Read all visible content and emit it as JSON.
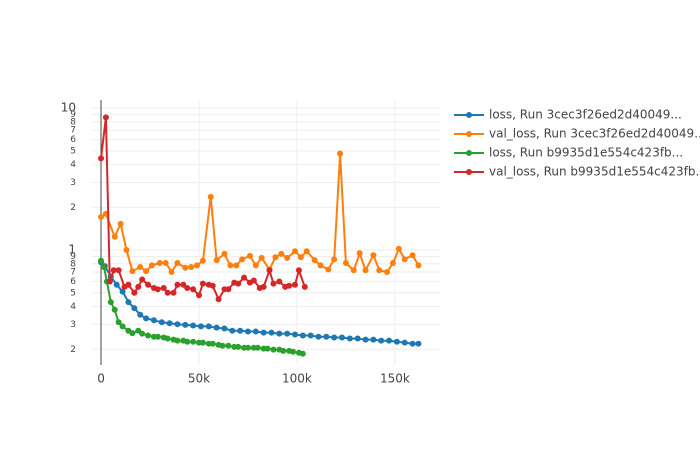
{
  "chart_data": {
    "type": "line",
    "log_y": true,
    "grid": true,
    "legend_position": "right",
    "xlim": [
      -4600,
      173000
    ],
    "ylim": [
      0.155,
      11.4
    ],
    "xticks": [
      0,
      {
        "value": 50000,
        "label": "50k"
      },
      {
        "value": 100000,
        "label": "100k"
      },
      {
        "value": 150000,
        "label": "150k"
      }
    ],
    "yticks": [
      {
        "value": 0.2,
        "label": "2"
      },
      {
        "value": 0.3,
        "label": "3"
      },
      {
        "value": 0.4,
        "label": "4"
      },
      {
        "value": 0.5,
        "label": "5"
      },
      {
        "value": 0.6,
        "label": "6"
      },
      {
        "value": 0.7,
        "label": "7"
      },
      {
        "value": 0.8,
        "label": "8"
      },
      {
        "value": 0.9,
        "label": "9"
      },
      1,
      2,
      3,
      4,
      5,
      6,
      7,
      8,
      9,
      10
    ],
    "series": [
      {
        "name": "loss, Run 3cec3f26ed2d40049...",
        "color": "#1f77b4",
        "x": [
          0,
          2000,
          5000,
          8000,
          11000,
          14000,
          17000,
          20000,
          23000,
          27000,
          31000,
          35000,
          39000,
          43000,
          47000,
          51000,
          55000,
          59000,
          63000,
          67000,
          71000,
          75000,
          79000,
          83000,
          87000,
          91000,
          95000,
          99000,
          103000,
          107000,
          111000,
          115000,
          119000,
          123000,
          127000,
          131000,
          135000,
          139000,
          143000,
          147000,
          151000,
          155000,
          159000,
          162000
        ],
        "values": [
          0.82,
          0.77,
          0.65,
          0.57,
          0.51,
          0.43,
          0.39,
          0.35,
          0.33,
          0.32,
          0.31,
          0.305,
          0.3,
          0.297,
          0.294,
          0.29,
          0.29,
          0.284,
          0.28,
          0.27,
          0.27,
          0.267,
          0.267,
          0.262,
          0.262,
          0.258,
          0.258,
          0.254,
          0.25,
          0.25,
          0.245,
          0.245,
          0.242,
          0.242,
          0.238,
          0.238,
          0.234,
          0.234,
          0.23,
          0.23,
          0.226,
          0.223,
          0.219,
          0.219
        ]
      },
      {
        "name": "val_loss, Run 3cec3f26ed2d40049...",
        "color": "#ff7f0e",
        "x": [
          0,
          2500,
          7000,
          10000,
          13000,
          16000,
          20000,
          23000,
          26000,
          30000,
          33000,
          36000,
          39000,
          43000,
          46000,
          49000,
          52000,
          56000,
          59000,
          63000,
          66000,
          69000,
          72000,
          76000,
          79000,
          82000,
          86000,
          89000,
          92000,
          95000,
          99000,
          102000,
          105000,
          109000,
          112000,
          116000,
          119000,
          122000,
          125000,
          129000,
          132000,
          135000,
          139000,
          142000,
          146000,
          149000,
          152000,
          155000,
          159000,
          162000
        ],
        "values": [
          1.71,
          1.8,
          1.24,
          1.53,
          1.0,
          0.71,
          0.76,
          0.71,
          0.78,
          0.81,
          0.81,
          0.7,
          0.81,
          0.75,
          0.76,
          0.78,
          0.84,
          2.37,
          0.85,
          0.94,
          0.78,
          0.78,
          0.86,
          0.91,
          0.78,
          0.88,
          0.73,
          0.89,
          0.94,
          0.88,
          0.98,
          0.89,
          0.98,
          0.85,
          0.78,
          0.73,
          0.86,
          4.79,
          0.81,
          0.72,
          0.95,
          0.72,
          0.92,
          0.72,
          0.7,
          0.81,
          1.02,
          0.86,
          0.92,
          0.78
        ]
      },
      {
        "name": "loss, Run b9935d1e554c423fb...",
        "color": "#2ca02c",
        "x": [
          0,
          1500,
          3000,
          5000,
          7000,
          9000,
          11000,
          14000,
          16000,
          19000,
          21000,
          24000,
          27000,
          29000,
          32000,
          34000,
          37000,
          39000,
          42000,
          44000,
          47000,
          50000,
          52000,
          55000,
          57000,
          60000,
          62000,
          65000,
          68000,
          70000,
          73000,
          75000,
          78000,
          80000,
          83000,
          85000,
          88000,
          91000,
          93000,
          96000,
          98000,
          101000,
          103000
        ],
        "values": [
          0.84,
          0.76,
          0.6,
          0.43,
          0.38,
          0.31,
          0.29,
          0.27,
          0.26,
          0.27,
          0.258,
          0.25,
          0.245,
          0.245,
          0.242,
          0.238,
          0.234,
          0.23,
          0.23,
          0.226,
          0.226,
          0.223,
          0.223,
          0.219,
          0.219,
          0.215,
          0.212,
          0.212,
          0.208,
          0.208,
          0.205,
          0.205,
          0.205,
          0.205,
          0.202,
          0.202,
          0.199,
          0.199,
          0.195,
          0.195,
          0.192,
          0.189,
          0.186
        ]
      },
      {
        "name": "val_loss, Run b9935d1e554c423fb...",
        "color": "#d62728",
        "x": [
          0,
          2500,
          4500,
          6500,
          9000,
          12000,
          14000,
          17000,
          19000,
          21000,
          24000,
          27000,
          29000,
          32000,
          34000,
          37000,
          39000,
          42000,
          44000,
          47000,
          50000,
          52000,
          55000,
          57000,
          60000,
          63000,
          65000,
          68000,
          70000,
          73000,
          76000,
          78000,
          81000,
          83000,
          86000,
          88000,
          91000,
          94000,
          96000,
          99000,
          101000,
          104000
        ],
        "values": [
          4.42,
          8.6,
          0.6,
          0.72,
          0.72,
          0.55,
          0.57,
          0.5,
          0.55,
          0.62,
          0.57,
          0.54,
          0.53,
          0.54,
          0.5,
          0.5,
          0.57,
          0.57,
          0.54,
          0.53,
          0.48,
          0.58,
          0.57,
          0.56,
          0.45,
          0.53,
          0.53,
          0.59,
          0.58,
          0.64,
          0.59,
          0.61,
          0.54,
          0.55,
          0.72,
          0.58,
          0.6,
          0.55,
          0.56,
          0.57,
          0.72,
          0.55
        ]
      }
    ]
  }
}
